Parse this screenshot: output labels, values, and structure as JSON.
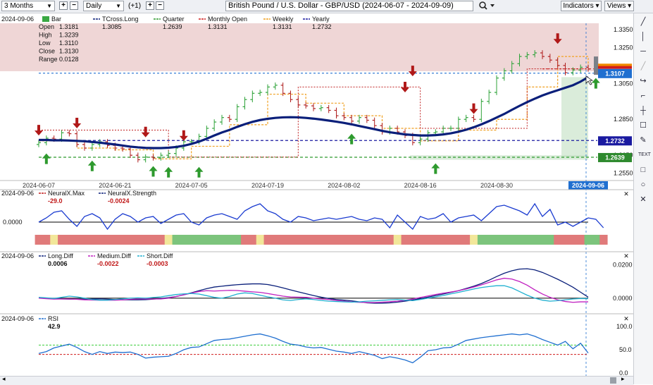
{
  "toolbar": {
    "range_value": "3 Months",
    "interval_value": "Daily",
    "offset_label": "(+1)",
    "title": "British Pound / U.S. Dollar - GBP/USD (2024-06-07 - 2024-09-09)",
    "indicators_label": "Indicators",
    "views_label": "Views"
  },
  "main": {
    "date": "2024-09-06",
    "legend": [
      {
        "name": "Bar",
        "value": "",
        "color": "#3aa843"
      },
      {
        "name": "TCross.Long",
        "value": "1.3085",
        "color": "#0a1f7a"
      },
      {
        "name": "Quarter",
        "value": "1.2639",
        "color": "#2e9a2e"
      },
      {
        "name": "Monthly Open",
        "value": "1.3131",
        "color": "#d01c1c"
      },
      {
        "name": "Weekly",
        "value": "1.3131",
        "color": "#f0a020"
      },
      {
        "name": "Yearly",
        "value": "1.2732",
        "color": "#1a1aa0"
      }
    ],
    "ohlc": [
      {
        "label": "Open",
        "value": "1.3181"
      },
      {
        "label": "High",
        "value": "1.3239"
      },
      {
        "label": "Low",
        "value": "1.3110"
      },
      {
        "label": "Close",
        "value": "1.3130"
      },
      {
        "label": "Range",
        "value": "0.0128"
      }
    ],
    "price_badges": [
      {
        "text": "1.3107",
        "color": "#1f6fd0"
      },
      {
        "text": "1.2732",
        "color": "#1a1aa0"
      },
      {
        "text": "1.2639",
        "color": "#2e8a2e"
      }
    ],
    "x_badge": "2024-09-06"
  },
  "neural": {
    "date": "2024-09-06",
    "legend": [
      {
        "name": "NeuralX.Max",
        "value": "-29.0",
        "color": "#c01818"
      },
      {
        "name": "NeuralX.Strength",
        "value": "-0.0024",
        "color": "#0a1f7a"
      }
    ],
    "yticks": [
      "0.0000"
    ]
  },
  "diff": {
    "date": "2024-09-06",
    "legend": [
      {
        "name": "Long.Diff",
        "value": "0.0006",
        "color": "#0a1f7a"
      },
      {
        "name": "Medium.Diff",
        "value": "-0.0022",
        "color": "#c020c0"
      },
      {
        "name": "Short.Diff",
        "value": "-0.0003",
        "color": "#20b0d0"
      }
    ],
    "yticks": [
      "0.0200",
      "0.0000"
    ]
  },
  "rsi": {
    "date": "2024-09-06",
    "legend": [
      {
        "name": "RSI",
        "value": "42.9",
        "color": "#1f6fd0"
      }
    ],
    "yticks": [
      "100.0",
      "50.0",
      "0.0"
    ]
  },
  "chart_data": [
    {
      "type": "candlestick",
      "title": "British Pound / U.S. Dollar - GBP/USD (2024-06-07 - 2024-09-09)",
      "x_ticks": [
        "2024-06-07",
        "2024-06-21",
        "2024-07-05",
        "2024-07-19",
        "2024-08-02",
        "2024-08-16",
        "2024-08-30",
        "2024-09-06"
      ],
      "y_ticks": [
        1.335,
        1.325,
        1.305,
        1.285,
        1.265,
        1.255
      ],
      "ylim": [
        1.2525,
        1.3385
      ],
      "close": [
        1.272,
        1.2745,
        1.274,
        1.2775,
        1.277,
        1.271,
        1.269,
        1.271,
        1.2725,
        1.2705,
        1.269,
        1.2685,
        1.265,
        1.2625,
        1.264,
        1.2635,
        1.265,
        1.266,
        1.269,
        1.2725,
        1.2725,
        1.2755,
        1.28,
        1.2835,
        1.286,
        1.285,
        1.292,
        1.296,
        1.2995,
        1.3,
        1.303,
        1.304,
        1.2995,
        1.296,
        1.293,
        1.2925,
        1.291,
        1.2915,
        1.29,
        1.287,
        1.286,
        1.284,
        1.286,
        1.2845,
        1.2815,
        1.278,
        1.28,
        1.278,
        1.276,
        1.272,
        1.274,
        1.2775,
        1.278,
        1.28,
        1.28,
        1.285,
        1.286,
        1.285,
        1.295,
        1.3,
        1.308,
        1.312,
        1.316,
        1.32,
        1.321,
        1.322,
        1.32,
        1.318,
        1.315,
        1.311,
        1.3125,
        1.314,
        1.313
      ],
      "series": [
        {
          "name": "TCross.Long",
          "values": [
            1.2735,
            1.2735,
            1.2733,
            1.2733,
            1.2732,
            1.273,
            1.2728,
            1.2724,
            1.272,
            1.2715,
            1.271,
            1.2704,
            1.2698,
            1.2694,
            1.2691,
            1.269,
            1.269,
            1.2692,
            1.2696,
            1.2703,
            1.2713,
            1.2726,
            1.2742,
            1.276,
            1.2777,
            1.2791,
            1.2808,
            1.2823,
            1.2836,
            1.2846,
            1.2853,
            1.2858,
            1.2861,
            1.2862,
            1.2861,
            1.2858,
            1.2854,
            1.2849,
            1.2843,
            1.2837,
            1.283,
            1.2822,
            1.2813,
            1.2804,
            1.2795,
            1.2786,
            1.2778,
            1.2772,
            1.2766,
            1.2763,
            1.276,
            1.276,
            1.2762,
            1.2766,
            1.2772,
            1.2781,
            1.2792,
            1.2806,
            1.2822,
            1.284,
            1.286,
            1.288,
            1.2903,
            1.2925,
            1.2946,
            1.2965,
            1.2983,
            1.2998,
            1.3012,
            1.3026,
            1.304,
            1.306,
            1.3085
          ]
        },
        {
          "name": "Quarter",
          "values": [
            1.2639
          ]
        },
        {
          "name": "Yearly",
          "values": [
            1.2732
          ]
        },
        {
          "name": "Monthly Open",
          "values": [
            1.3131
          ]
        },
        {
          "name": "Weekly",
          "values": [
            1.3131
          ]
        }
      ]
    },
    {
      "type": "line",
      "title": "NeuralX",
      "series": [
        {
          "name": "NeuralX.Strength",
          "values": [
            0.0,
            0.3,
            0.7,
            0.8,
            0.2,
            -0.3,
            0.4,
            0.6,
            0.3,
            -0.5,
            0.2,
            0.6,
            0.4,
            0.0,
            0.3,
            0.4,
            -0.1,
            0.2,
            0.5,
            0.6,
            0.0,
            -0.2,
            0.3,
            0.5,
            0.6,
            0.4,
            0.2,
            0.8,
            1.1,
            1.3,
            0.8,
            0.6,
            0.2,
            0.0,
            0.4,
            0.3,
            0.1,
            0.2,
            0.3,
            0.2,
            0.3,
            0.4,
            0.2,
            0.1,
            0.3,
            0.2,
            -0.4,
            0.5,
            0.0,
            -0.5,
            0.4,
            0.2,
            0.3,
            0.6,
            0.0,
            0.3,
            0.4,
            0.5,
            0.1,
            0.6,
            1.1,
            1.2,
            1.0,
            0.8,
            0.5,
            1.3,
            0.4,
            0.9,
            -0.2,
            0.0,
            -0.3,
            0.0,
            0.3,
            0.2,
            -0.4
          ]
        },
        {
          "name": "NeuralX.Max",
          "values": [
            "red",
            "red",
            "yellow",
            "red",
            "red",
            "red",
            "red",
            "red",
            "red",
            "red",
            "red",
            "red",
            "red",
            "red",
            "red",
            "red",
            "red",
            "yellow",
            "green",
            "green",
            "green",
            "green",
            "green",
            "green",
            "green",
            "green",
            "green",
            "red",
            "red",
            "yellow",
            "red",
            "red",
            "red",
            "red",
            "red",
            "red",
            "red",
            "red",
            "red",
            "red",
            "red",
            "red",
            "red",
            "red",
            "red",
            "red",
            "red",
            "yellow",
            "red",
            "red",
            "red",
            "red",
            "red",
            "red",
            "red",
            "red",
            "red",
            "yellow",
            "green",
            "green",
            "green",
            "green",
            "green",
            "green",
            "green",
            "green",
            "green",
            "green",
            "red",
            "red",
            "red",
            "red",
            "green",
            "green",
            "red"
          ]
        }
      ]
    },
    {
      "type": "line",
      "title": "Diff",
      "ylim": [
        -0.006,
        0.022
      ],
      "series": [
        {
          "name": "Long.Diff",
          "values": [
            0.0,
            0.0,
            -0.0003,
            -0.0005,
            -0.0006,
            -0.0006,
            -0.0006,
            -0.0005,
            -0.0004,
            -0.0006,
            -0.0008,
            -0.001,
            -0.001,
            -0.001,
            -0.0009,
            -0.0006,
            -0.0002,
            0.0003,
            0.001,
            0.002,
            0.0032,
            0.0045,
            0.0057,
            0.0067,
            0.0072,
            0.0077,
            0.0081,
            0.0084,
            0.0086,
            0.0086,
            0.0082,
            0.0073,
            0.0062,
            0.005,
            0.0038,
            0.0027,
            0.0016,
            0.0006,
            -0.0002,
            -0.0008,
            -0.0012,
            -0.0016,
            -0.0022,
            -0.0028,
            -0.003,
            -0.003,
            -0.0028,
            -0.0024,
            -0.0018,
            -0.0011,
            -0.0003,
            0.0006,
            0.0016,
            0.0025,
            0.0035,
            0.0045,
            0.0058,
            0.0072,
            0.0088,
            0.0108,
            0.013,
            0.015,
            0.0165,
            0.0175,
            0.0177,
            0.017,
            0.0155,
            0.0135,
            0.0114,
            0.0091,
            0.0066,
            0.0036,
            0.0006
          ]
        },
        {
          "name": "Medium.Diff",
          "values": [
            0.0,
            -0.0003,
            -0.0006,
            -0.0005,
            -0.0005,
            -0.0007,
            -0.001,
            -0.0011,
            -0.0012,
            -0.0012,
            -0.0012,
            -0.001,
            -0.0007,
            -0.0005,
            -0.0004,
            -0.0005,
            -0.0005,
            0.0,
            0.001,
            0.002,
            0.003,
            0.004,
            0.0045,
            0.0043,
            0.0045,
            0.0047,
            0.0046,
            0.0042,
            0.0038,
            0.0035,
            0.0028,
            0.002,
            0.0012,
            0.0007,
            0.0006,
            0.0005,
            0.0,
            -0.0005,
            -0.0008,
            -0.0014,
            -0.0018,
            -0.0022,
            -0.0025,
            -0.0026,
            -0.0026,
            -0.0024,
            -0.0021,
            -0.0018,
            -0.0013,
            -0.0005,
            0.0004,
            0.0013,
            0.0022,
            0.003,
            0.0037,
            0.0045,
            0.0055,
            0.0067,
            0.008,
            0.0095,
            0.011,
            0.012,
            0.0115,
            0.01,
            0.0078,
            0.005,
            0.0025,
            0.0005,
            -0.001,
            -0.002,
            -0.0025,
            -0.0022,
            -0.0022
          ]
        },
        {
          "name": "Short.Diff",
          "values": [
            0.0005,
            0.0002,
            -0.0002,
            0.0005,
            0.0012,
            0.0008,
            0.0,
            -0.0008,
            -0.0012,
            -0.0012,
            -0.0008,
            -0.0004,
            0.0,
            0.0002,
            0.0,
            0.0004,
            0.0008,
            0.0015,
            0.0022,
            0.0026,
            0.0028,
            0.0025,
            0.0015,
            0.0005,
            0.0,
            0.001,
            0.0025,
            0.0032,
            0.0028,
            0.0018,
            0.0008,
            0.0,
            -0.001,
            -0.0014,
            -0.0008,
            -0.0004,
            -0.0008,
            -0.0014,
            -0.0018,
            -0.002,
            -0.0022,
            -0.0024,
            -0.0022,
            -0.0018,
            -0.0016,
            -0.0013,
            -0.001,
            -0.0008,
            -0.0012,
            -0.0015,
            -0.0008,
            0.0,
            0.0008,
            0.0016,
            0.0026,
            0.0035,
            0.0045,
            0.0055,
            0.0064,
            0.007,
            0.0075,
            0.0075,
            0.0062,
            0.004,
            0.0018,
            0.0,
            -0.0012,
            -0.0018,
            -0.0015,
            -0.001,
            -0.0005,
            -0.0002,
            -0.0003
          ]
        }
      ]
    },
    {
      "type": "line",
      "title": "RSI",
      "ylim": [
        0,
        100
      ],
      "series": [
        {
          "name": "RSI",
          "values": [
            42,
            46,
            54,
            58,
            62,
            55,
            46,
            40,
            46,
            42,
            45,
            44,
            45,
            40,
            32,
            34,
            35,
            36,
            42,
            50,
            55,
            56,
            63,
            70,
            72,
            73,
            76,
            79,
            82,
            84,
            80,
            75,
            68,
            62,
            60,
            56,
            54,
            55,
            51,
            47,
            45,
            42,
            46,
            42,
            38,
            31,
            35,
            32,
            28,
            22,
            34,
            48,
            50,
            54,
            55,
            62,
            70,
            73,
            76,
            78,
            80,
            82,
            84,
            82,
            84,
            79,
            72,
            66,
            60,
            68,
            52,
            64,
            43
          ]
        }
      ]
    }
  ]
}
